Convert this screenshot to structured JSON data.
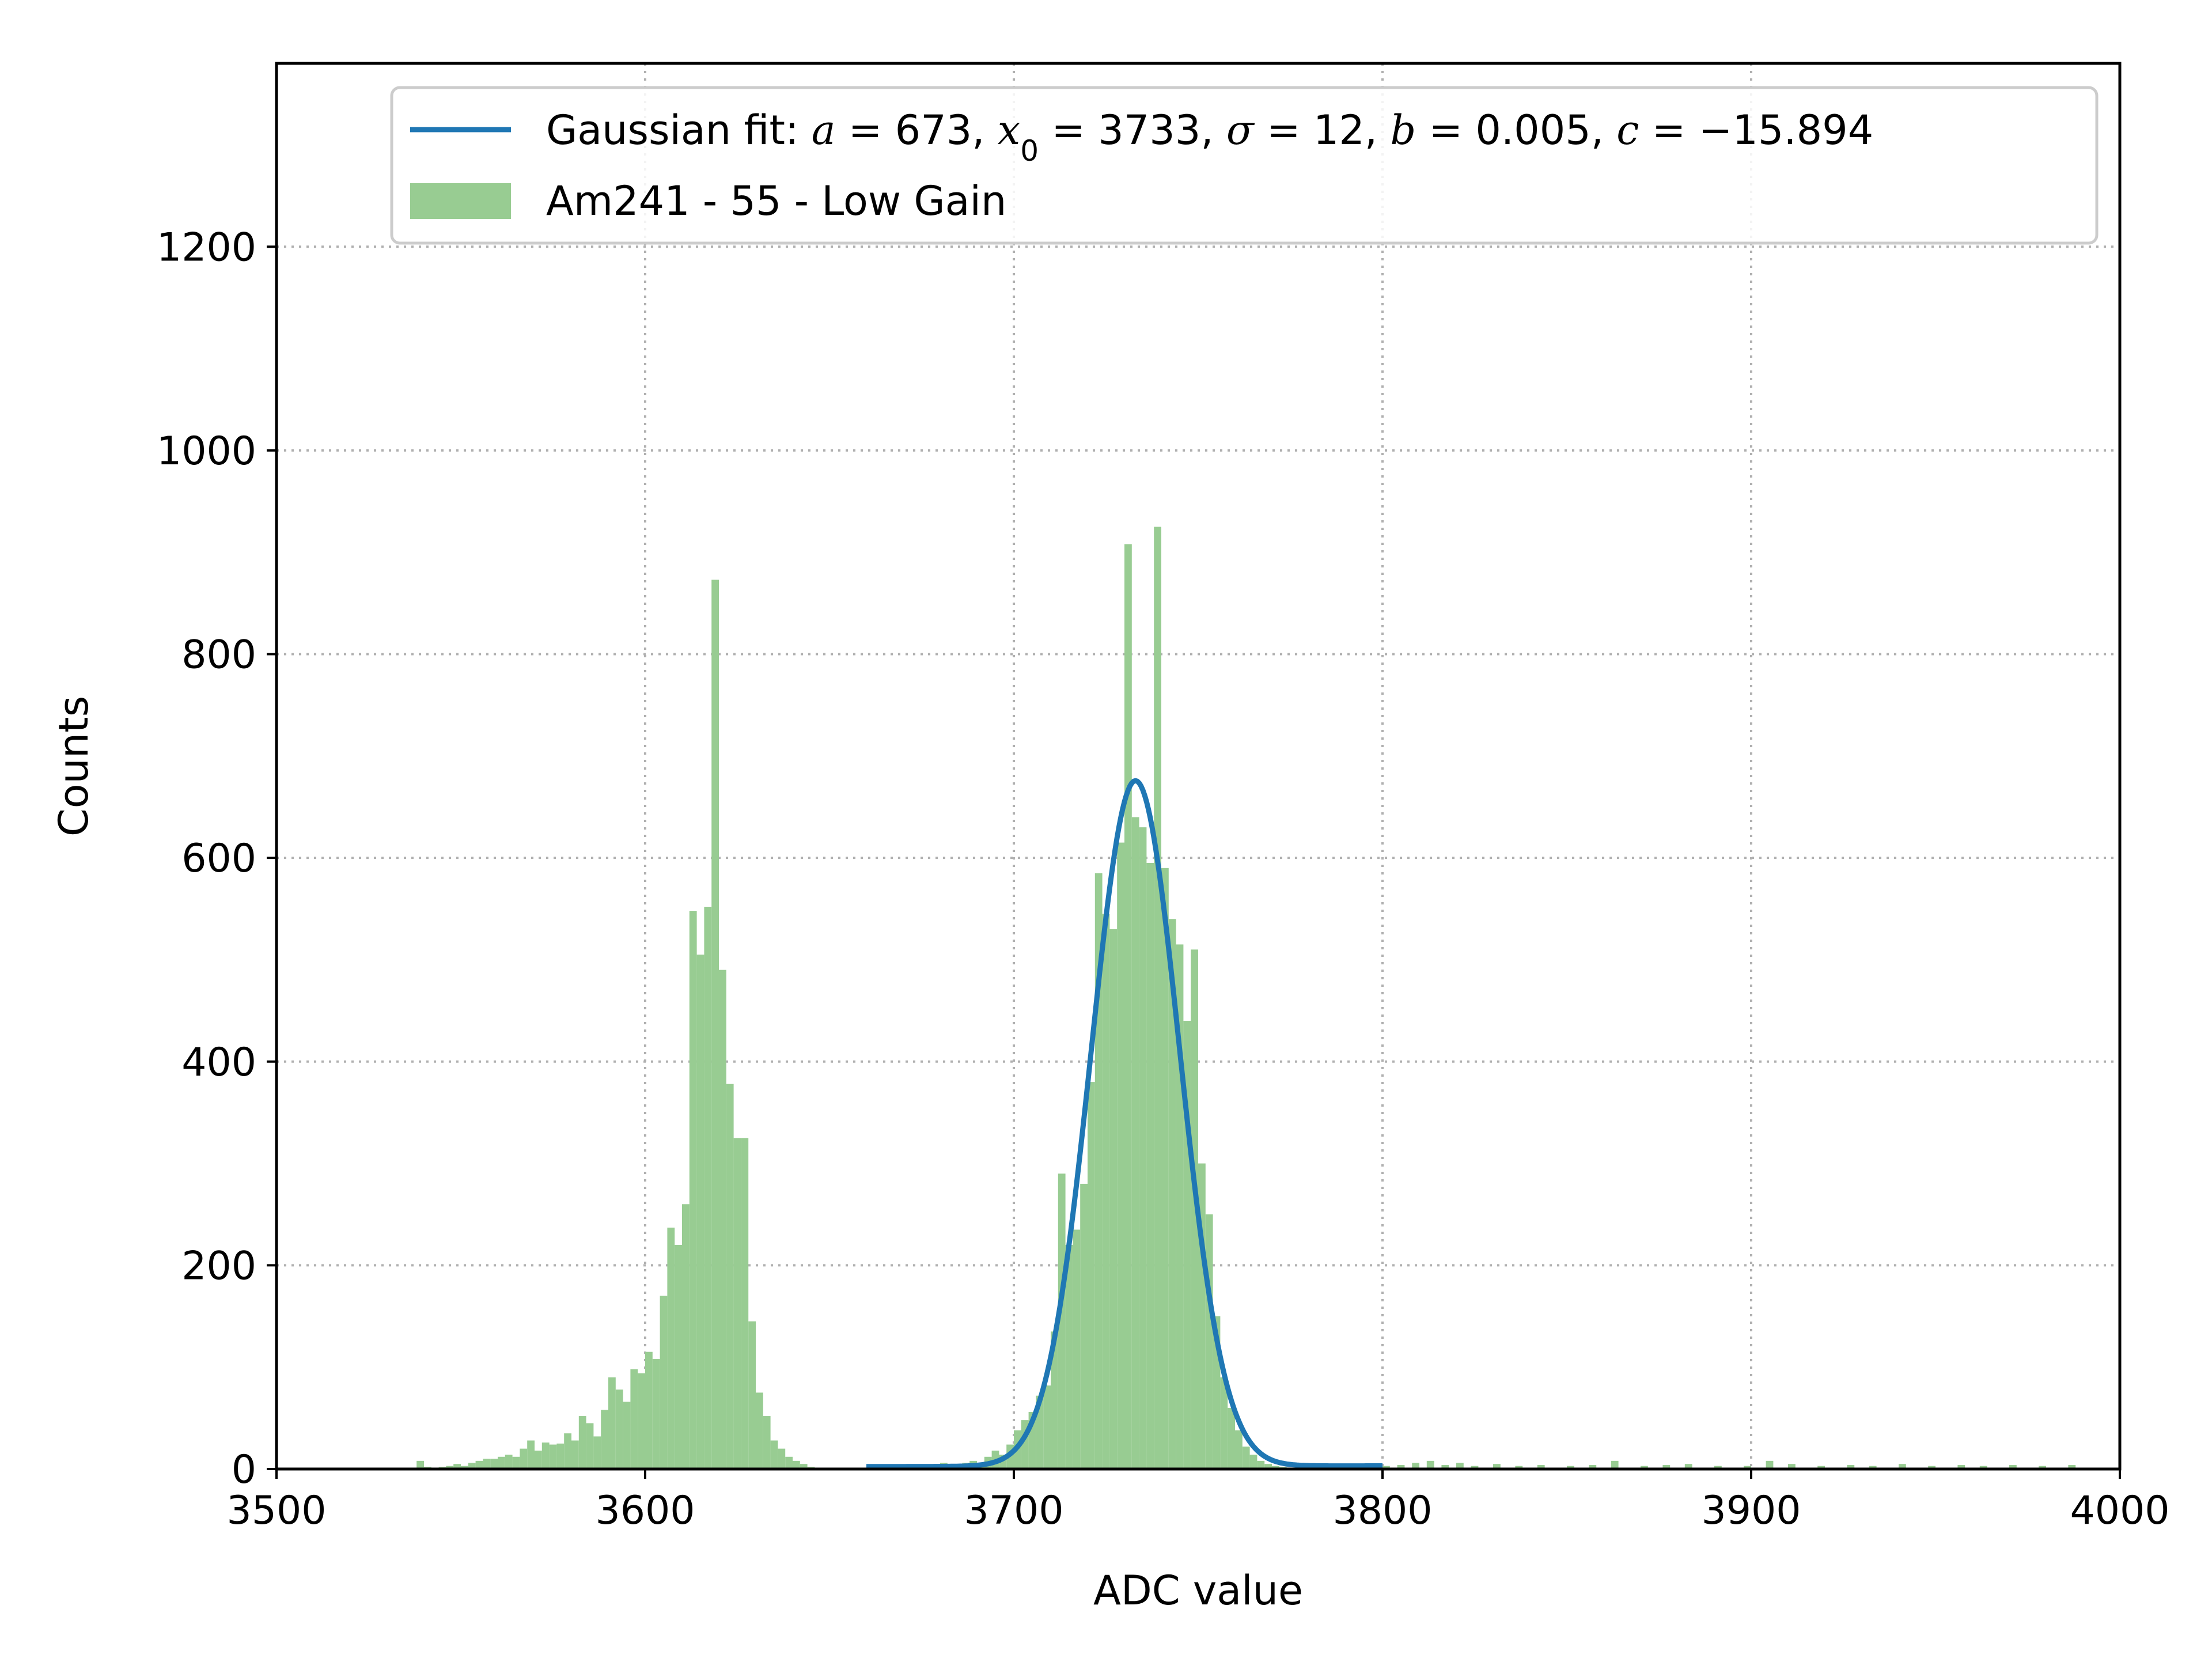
{
  "chart_data": {
    "type": "bar",
    "title": "",
    "xlabel": "ADC value",
    "ylabel": "Counts",
    "xlim": [
      3500,
      4000
    ],
    "ylim": [
      0,
      1380
    ],
    "x_ticks": [
      "3500",
      "3600",
      "3700",
      "3800",
      "3900",
      "4000"
    ],
    "y_ticks": [
      "0",
      "200",
      "400",
      "600",
      "800",
      "1000",
      "1200"
    ],
    "grid": true,
    "grid_style": "dotted",
    "legend_position": "top-right",
    "histogram": {
      "name": "Am241 - 55 - Low Gain",
      "color": "#98cc92",
      "bin_width": 2,
      "bins": [
        [
          3538,
          8
        ],
        [
          3540,
          2
        ],
        [
          3542,
          1
        ],
        [
          3544,
          2
        ],
        [
          3546,
          3
        ],
        [
          3548,
          5
        ],
        [
          3550,
          3
        ],
        [
          3552,
          6
        ],
        [
          3554,
          8
        ],
        [
          3556,
          10
        ],
        [
          3558,
          10
        ],
        [
          3560,
          12
        ],
        [
          3562,
          14
        ],
        [
          3564,
          12
        ],
        [
          3566,
          20
        ],
        [
          3568,
          28
        ],
        [
          3570,
          18
        ],
        [
          3572,
          26
        ],
        [
          3574,
          24
        ],
        [
          3576,
          25
        ],
        [
          3578,
          35
        ],
        [
          3580,
          28
        ],
        [
          3582,
          52
        ],
        [
          3584,
          45
        ],
        [
          3586,
          32
        ],
        [
          3588,
          58
        ],
        [
          3590,
          90
        ],
        [
          3592,
          78
        ],
        [
          3594,
          66
        ],
        [
          3596,
          98
        ],
        [
          3598,
          94
        ],
        [
          3600,
          115
        ],
        [
          3602,
          108
        ],
        [
          3604,
          170
        ],
        [
          3606,
          237
        ],
        [
          3608,
          220
        ],
        [
          3610,
          260
        ],
        [
          3612,
          548
        ],
        [
          3614,
          505
        ],
        [
          3616,
          552
        ],
        [
          3618,
          873
        ],
        [
          3620,
          490
        ],
        [
          3622,
          378
        ],
        [
          3624,
          325
        ],
        [
          3626,
          325
        ],
        [
          3628,
          145
        ],
        [
          3630,
          75
        ],
        [
          3632,
          52
        ],
        [
          3634,
          28
        ],
        [
          3636,
          20
        ],
        [
          3638,
          12
        ],
        [
          3640,
          8
        ],
        [
          3642,
          5
        ],
        [
          3644,
          2
        ],
        [
          3646,
          1
        ],
        [
          3680,
          6
        ],
        [
          3682,
          5
        ],
        [
          3684,
          3
        ],
        [
          3686,
          6
        ],
        [
          3688,
          8
        ],
        [
          3690,
          4
        ],
        [
          3692,
          12
        ],
        [
          3694,
          18
        ],
        [
          3696,
          14
        ],
        [
          3698,
          24
        ],
        [
          3700,
          38
        ],
        [
          3702,
          48
        ],
        [
          3704,
          56
        ],
        [
          3706,
          72
        ],
        [
          3708,
          82
        ],
        [
          3710,
          135
        ],
        [
          3712,
          290
        ],
        [
          3714,
          220
        ],
        [
          3716,
          235
        ],
        [
          3718,
          280
        ],
        [
          3720,
          380
        ],
        [
          3722,
          585
        ],
        [
          3724,
          545
        ],
        [
          3726,
          530
        ],
        [
          3728,
          615
        ],
        [
          3730,
          908
        ],
        [
          3732,
          640
        ],
        [
          3734,
          630
        ],
        [
          3736,
          595
        ],
        [
          3738,
          925
        ],
        [
          3740,
          590
        ],
        [
          3742,
          540
        ],
        [
          3744,
          515
        ],
        [
          3746,
          440
        ],
        [
          3748,
          510
        ],
        [
          3750,
          300
        ],
        [
          3752,
          250
        ],
        [
          3754,
          150
        ],
        [
          3756,
          90
        ],
        [
          3758,
          60
        ],
        [
          3760,
          38
        ],
        [
          3762,
          22
        ],
        [
          3764,
          14
        ],
        [
          3766,
          8
        ],
        [
          3768,
          5
        ],
        [
          3770,
          3
        ],
        [
          3772,
          2
        ],
        [
          3800,
          3
        ],
        [
          3804,
          4
        ],
        [
          3808,
          6
        ],
        [
          3812,
          8
        ],
        [
          3816,
          4
        ],
        [
          3820,
          6
        ],
        [
          3824,
          3
        ],
        [
          3830,
          5
        ],
        [
          3836,
          3
        ],
        [
          3842,
          4
        ],
        [
          3850,
          3
        ],
        [
          3856,
          4
        ],
        [
          3862,
          8
        ],
        [
          3870,
          3
        ],
        [
          3876,
          4
        ],
        [
          3882,
          5
        ],
        [
          3890,
          3
        ],
        [
          3898,
          3
        ],
        [
          3904,
          8
        ],
        [
          3910,
          5
        ],
        [
          3918,
          3
        ],
        [
          3926,
          4
        ],
        [
          3932,
          3
        ],
        [
          3940,
          5
        ],
        [
          3948,
          3
        ],
        [
          3956,
          4
        ],
        [
          3962,
          3
        ],
        [
          3970,
          4
        ],
        [
          3978,
          3
        ],
        [
          3986,
          4
        ]
      ]
    },
    "fit": {
      "name": "Gaussian fit: a = 673, x₀ = 3733, σ = 12, b = 0.005, c = −15.894",
      "color": "#1f77b4",
      "model": "a*exp(-(x-x0)^2/(2*sigma^2)) + b*x + c",
      "params": {
        "a": 673,
        "x0": 3733,
        "sigma": 12,
        "b": 0.005,
        "c": -15.894
      },
      "x_range": [
        3660,
        3800
      ]
    }
  }
}
